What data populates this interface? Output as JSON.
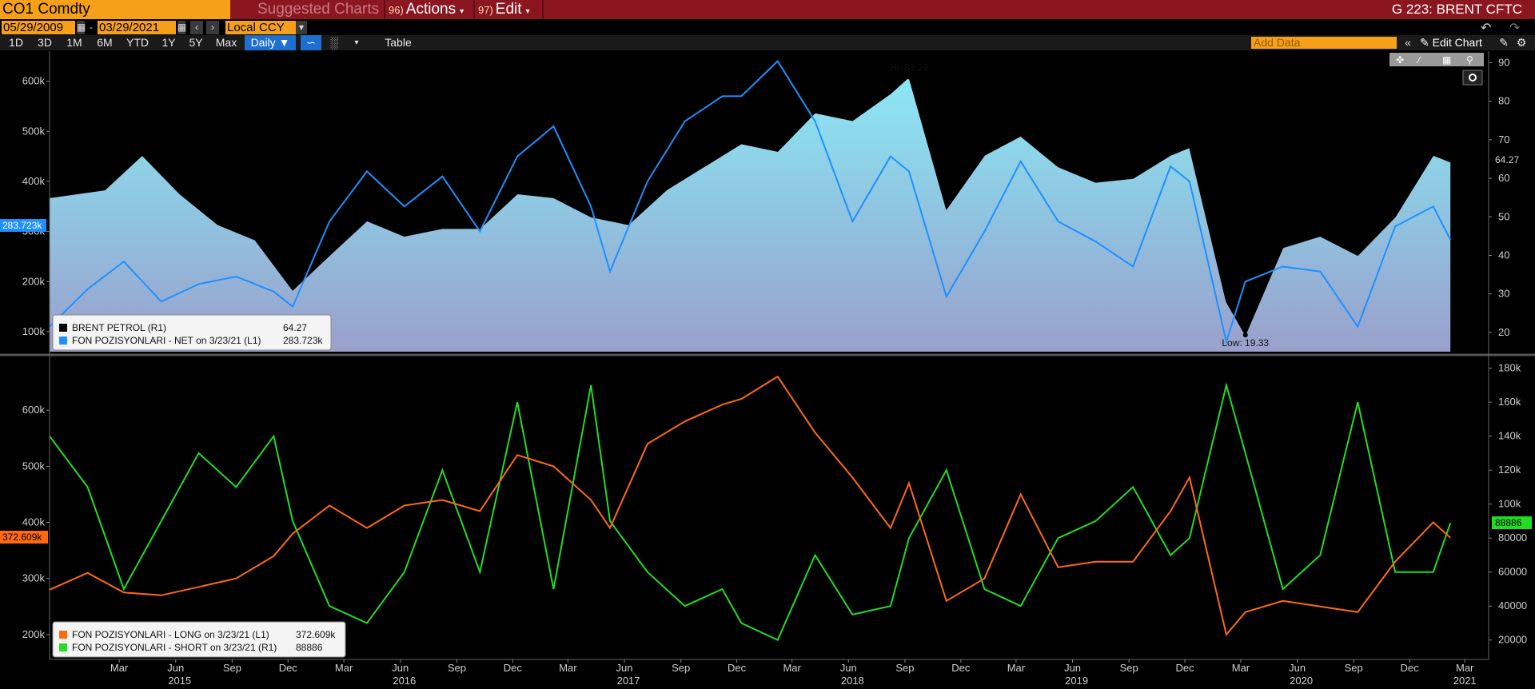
{
  "header": {
    "ticker": "CO1 Comdty",
    "menu": [
      {
        "num": "",
        "label": "Suggested Charts",
        "dim": true
      },
      {
        "num": "96)",
        "label": "Actions",
        "caret": true
      },
      {
        "num": "97)",
        "label": "Edit",
        "caret": true
      }
    ],
    "screen_title": "G 223: BRENT CFTC"
  },
  "toolbar": {
    "start_date": "05/29/2009",
    "end_date": "03/29/2021",
    "currency": "Local CCY",
    "ranges": [
      "1D",
      "3D",
      "1M",
      "6M",
      "YTD",
      "1Y",
      "5Y",
      "Max"
    ],
    "frequency": "Daily",
    "table_label": "Table",
    "add_data_placeholder": "Add Data",
    "edit_chart_label": "Edit Chart"
  },
  "chart_data": [
    {
      "type": "area",
      "title": "",
      "x_ticks": [
        "Mar",
        "Jun",
        "Sep",
        "Dec",
        "Mar",
        "Jun",
        "Sep",
        "Dec",
        "Mar",
        "Jun",
        "Sep",
        "Dec",
        "Mar",
        "Jun",
        "Sep",
        "Dec",
        "Mar",
        "Jun",
        "Sep",
        "Dec",
        "Mar",
        "Jun",
        "Sep",
        "Dec",
        "Mar"
      ],
      "x_years": [
        "2015",
        "2016",
        "2017",
        "2018",
        "2019",
        "2020",
        "2021"
      ],
      "left_axis": {
        "ticks": [
          "100k",
          "200k",
          "300k",
          "400k",
          "500k",
          "600k"
        ],
        "range": [
          60000,
          660000
        ]
      },
      "right_axis": {
        "ticks": [
          "20",
          "30",
          "40",
          "50",
          "60",
          "70",
          "80",
          "90"
        ],
        "range": [
          15,
          93
        ]
      },
      "annotations": {
        "high": "Hi: 86.29",
        "low": "Low: 19.33"
      },
      "last_labels": {
        "left": "283.723k",
        "right": "64.27"
      },
      "series": [
        {
          "name": "BRENT PETROL (R1)",
          "axis": "right",
          "color": "#000000",
          "fill": true,
          "last": "64.27",
          "dates": [
            "2014-12",
            "2015-03",
            "2015-05",
            "2015-07",
            "2015-09",
            "2015-11",
            "2016-01",
            "2016-03",
            "2016-05",
            "2016-07",
            "2016-09",
            "2016-11",
            "2017-01",
            "2017-03",
            "2017-05",
            "2017-07",
            "2017-09",
            "2017-11",
            "2018-01",
            "2018-03",
            "2018-05",
            "2018-07",
            "2018-09",
            "2018-10",
            "2018-12",
            "2019-02",
            "2019-04",
            "2019-06",
            "2019-08",
            "2019-10",
            "2019-12",
            "2020-01",
            "2020-03",
            "2020-04",
            "2020-06",
            "2020-08",
            "2020-10",
            "2020-12",
            "2021-02",
            "2021-03"
          ],
          "values": [
            55,
            57,
            66,
            56,
            48,
            44,
            31,
            40,
            49,
            45,
            47,
            47,
            56,
            55,
            50,
            48,
            57,
            63,
            69,
            67,
            77,
            75,
            82,
            86.29,
            52,
            66,
            71,
            63,
            59,
            60,
            66,
            68,
            28,
            19.33,
            42,
            45,
            40,
            50,
            66,
            64.27
          ]
        },
        {
          "name": "FON POZISYONLARI - NET on 3/23/21 (L1)",
          "axis": "left",
          "color": "#1e90ff",
          "last": "283.723k",
          "dates": [
            "2014-12",
            "2015-02",
            "2015-04",
            "2015-06",
            "2015-08",
            "2015-10",
            "2015-12",
            "2016-01",
            "2016-03",
            "2016-05",
            "2016-07",
            "2016-09",
            "2016-11",
            "2017-01",
            "2017-03",
            "2017-05",
            "2017-06",
            "2017-08",
            "2017-10",
            "2017-12",
            "2018-01",
            "2018-03",
            "2018-05",
            "2018-07",
            "2018-09",
            "2018-10",
            "2018-12",
            "2019-02",
            "2019-04",
            "2019-06",
            "2019-08",
            "2019-10",
            "2019-12",
            "2020-01",
            "2020-03",
            "2020-04",
            "2020-06",
            "2020-08",
            "2020-10",
            "2020-12",
            "2021-02",
            "2021-03"
          ],
          "values": [
            110000,
            185000,
            240000,
            160000,
            195000,
            210000,
            180000,
            150000,
            320000,
            420000,
            350000,
            410000,
            300000,
            450000,
            510000,
            350000,
            220000,
            400000,
            520000,
            570000,
            570000,
            640000,
            520000,
            320000,
            450000,
            420000,
            170000,
            300000,
            440000,
            320000,
            280000,
            230000,
            430000,
            400000,
            80000,
            200000,
            230000,
            220000,
            110000,
            310000,
            350000,
            283723
          ]
        }
      ],
      "legend": [
        {
          "name": "BRENT PETROL (R1)",
          "value": "64.27",
          "color": "#000000"
        },
        {
          "name": "FON POZISYONLARI - NET on 3/23/21 (L1)",
          "value": "283.723k",
          "color": "#1e90ff"
        }
      ]
    },
    {
      "type": "line",
      "title": "",
      "left_axis": {
        "ticks": [
          "200k",
          "300k",
          "400k",
          "500k",
          "600k"
        ],
        "range": [
          160000,
          690000
        ]
      },
      "right_axis": {
        "ticks": [
          "20000",
          "40000",
          "60000",
          "80000",
          "100k",
          "120k",
          "140k",
          "160k",
          "180k"
        ],
        "range": [
          10000,
          185000
        ]
      },
      "last_labels": {
        "left": "372.609k",
        "right": "88886"
      },
      "series": [
        {
          "name": "FON POZISYONLARI - LONG on 3/23/21 (L1)",
          "axis": "left",
          "color": "#ff6a10",
          "last": "372.609k",
          "dates": [
            "2014-12",
            "2015-02",
            "2015-04",
            "2015-06",
            "2015-08",
            "2015-10",
            "2015-12",
            "2016-01",
            "2016-03",
            "2016-05",
            "2016-07",
            "2016-09",
            "2016-11",
            "2017-01",
            "2017-03",
            "2017-05",
            "2017-06",
            "2017-08",
            "2017-10",
            "2017-12",
            "2018-01",
            "2018-03",
            "2018-05",
            "2018-07",
            "2018-09",
            "2018-10",
            "2018-12",
            "2019-02",
            "2019-04",
            "2019-06",
            "2019-08",
            "2019-10",
            "2019-12",
            "2020-01",
            "2020-03",
            "2020-04",
            "2020-06",
            "2020-08",
            "2020-10",
            "2020-12",
            "2021-02",
            "2021-03"
          ],
          "values": [
            280000,
            310000,
            275000,
            270000,
            285000,
            300000,
            340000,
            380000,
            430000,
            390000,
            430000,
            440000,
            420000,
            520000,
            500000,
            440000,
            390000,
            540000,
            580000,
            610000,
            620000,
            660000,
            560000,
            480000,
            390000,
            470000,
            260000,
            300000,
            450000,
            320000,
            330000,
            330000,
            420000,
            480000,
            200000,
            240000,
            260000,
            250000,
            240000,
            330000,
            400000,
            372609
          ]
        },
        {
          "name": "FON POZISYONLARI - SHORT on 3/23/21 (R1)",
          "axis": "right",
          "color": "#22dd22",
          "last": "88886",
          "dates": [
            "2014-12",
            "2015-02",
            "2015-04",
            "2015-06",
            "2015-08",
            "2015-10",
            "2015-12",
            "2016-01",
            "2016-03",
            "2016-05",
            "2016-07",
            "2016-09",
            "2016-11",
            "2017-01",
            "2017-03",
            "2017-05",
            "2017-06",
            "2017-08",
            "2017-10",
            "2017-12",
            "2018-01",
            "2018-03",
            "2018-05",
            "2018-07",
            "2018-09",
            "2018-10",
            "2018-12",
            "2019-02",
            "2019-04",
            "2019-06",
            "2019-08",
            "2019-10",
            "2019-12",
            "2020-01",
            "2020-03",
            "2020-04",
            "2020-06",
            "2020-08",
            "2020-10",
            "2020-12",
            "2021-02",
            "2021-03"
          ],
          "values": [
            140000,
            110000,
            50000,
            90000,
            130000,
            110000,
            140000,
            90000,
            40000,
            30000,
            60000,
            120000,
            60000,
            160000,
            50000,
            170000,
            90000,
            60000,
            40000,
            50000,
            30000,
            20000,
            70000,
            35000,
            40000,
            80000,
            120000,
            50000,
            40000,
            80000,
            90000,
            110000,
            70000,
            80000,
            170000,
            130000,
            50000,
            70000,
            160000,
            60000,
            60000,
            88886
          ]
        }
      ],
      "legend": [
        {
          "name": "FON POZISYONLARI - LONG on 3/23/21 (L1)",
          "value": "372.609k",
          "color": "#ff6a10"
        },
        {
          "name": "FON POZISYONLARI - SHORT on 3/23/21 (R1)",
          "value": "88886",
          "color": "#22dd22"
        }
      ]
    }
  ]
}
